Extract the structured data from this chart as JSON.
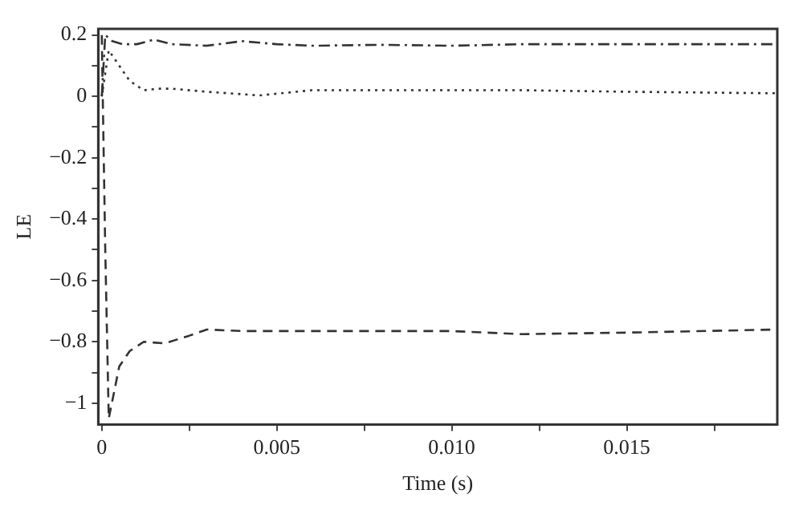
{
  "chart_data": {
    "type": "line",
    "xlabel": "Time (s)",
    "ylabel": "LE",
    "xlim": [
      -0.0001,
      0.0193
    ],
    "ylim": [
      -1.07,
      0.22
    ],
    "xticks": [
      0,
      {
        "value": 0.0025,
        "label": null
      },
      0.005,
      {
        "value": 0.0075,
        "label": null
      },
      {
        "value": 0.01,
        "label": "0.010"
      },
      {
        "value": 0.0125,
        "label": null
      },
      0.015,
      {
        "value": 0.0175,
        "label": null
      }
    ],
    "yticks": [
      {
        "value": -1,
        "label": "−1"
      },
      {
        "value": -0.9,
        "label": null
      },
      {
        "value": -0.8,
        "label": "−0.8"
      },
      {
        "value": -0.7,
        "label": null
      },
      {
        "value": -0.6,
        "label": "−0.6"
      },
      {
        "value": -0.5,
        "label": null
      },
      {
        "value": -0.4,
        "label": "−0.4"
      },
      {
        "value": -0.3,
        "label": null
      },
      {
        "value": -0.2,
        "label": "−0.2"
      },
      {
        "value": -0.1,
        "label": null
      },
      0,
      {
        "value": 0.1,
        "label": null
      },
      0.2
    ],
    "marker": "none",
    "series": [
      {
        "color": "#333333",
        "line_style": "dashdot",
        "x": [
          0,
          0.0001,
          0.0003,
          0.0006,
          0.001,
          0.0015,
          0.002,
          0.003,
          0.004,
          0.005,
          0.006,
          0.008,
          0.01,
          0.012,
          0.015,
          0.0193
        ],
        "values": [
          0.0,
          0.2,
          0.18,
          0.17,
          0.17,
          0.185,
          0.17,
          0.165,
          0.18,
          0.17,
          0.165,
          0.168,
          0.165,
          0.17,
          0.17,
          0.17
        ]
      },
      {
        "color": "#333333",
        "line_style": "dotted",
        "x": [
          0,
          0.0002,
          0.0005,
          0.0008,
          0.0012,
          0.0016,
          0.002,
          0.003,
          0.0045,
          0.006,
          0.009,
          0.012,
          0.015,
          0.0193
        ],
        "values": [
          0.0,
          0.15,
          0.1,
          0.05,
          0.02,
          0.025,
          0.025,
          0.015,
          0.003,
          0.02,
          0.02,
          0.02,
          0.015,
          0.01
        ]
      },
      {
        "color": "#333333",
        "line_style": "dashed",
        "x": [
          0,
          0.0001,
          0.0002,
          0.0005,
          0.0008,
          0.0012,
          0.0018,
          0.0025,
          0.003,
          0.004,
          0.007,
          0.01,
          0.012,
          0.015,
          0.0193
        ],
        "values": [
          0.2,
          -0.5,
          -1.05,
          -0.88,
          -0.83,
          -0.8,
          -0.805,
          -0.78,
          -0.76,
          -0.765,
          -0.765,
          -0.765,
          -0.775,
          -0.77,
          -0.76
        ]
      }
    ]
  }
}
